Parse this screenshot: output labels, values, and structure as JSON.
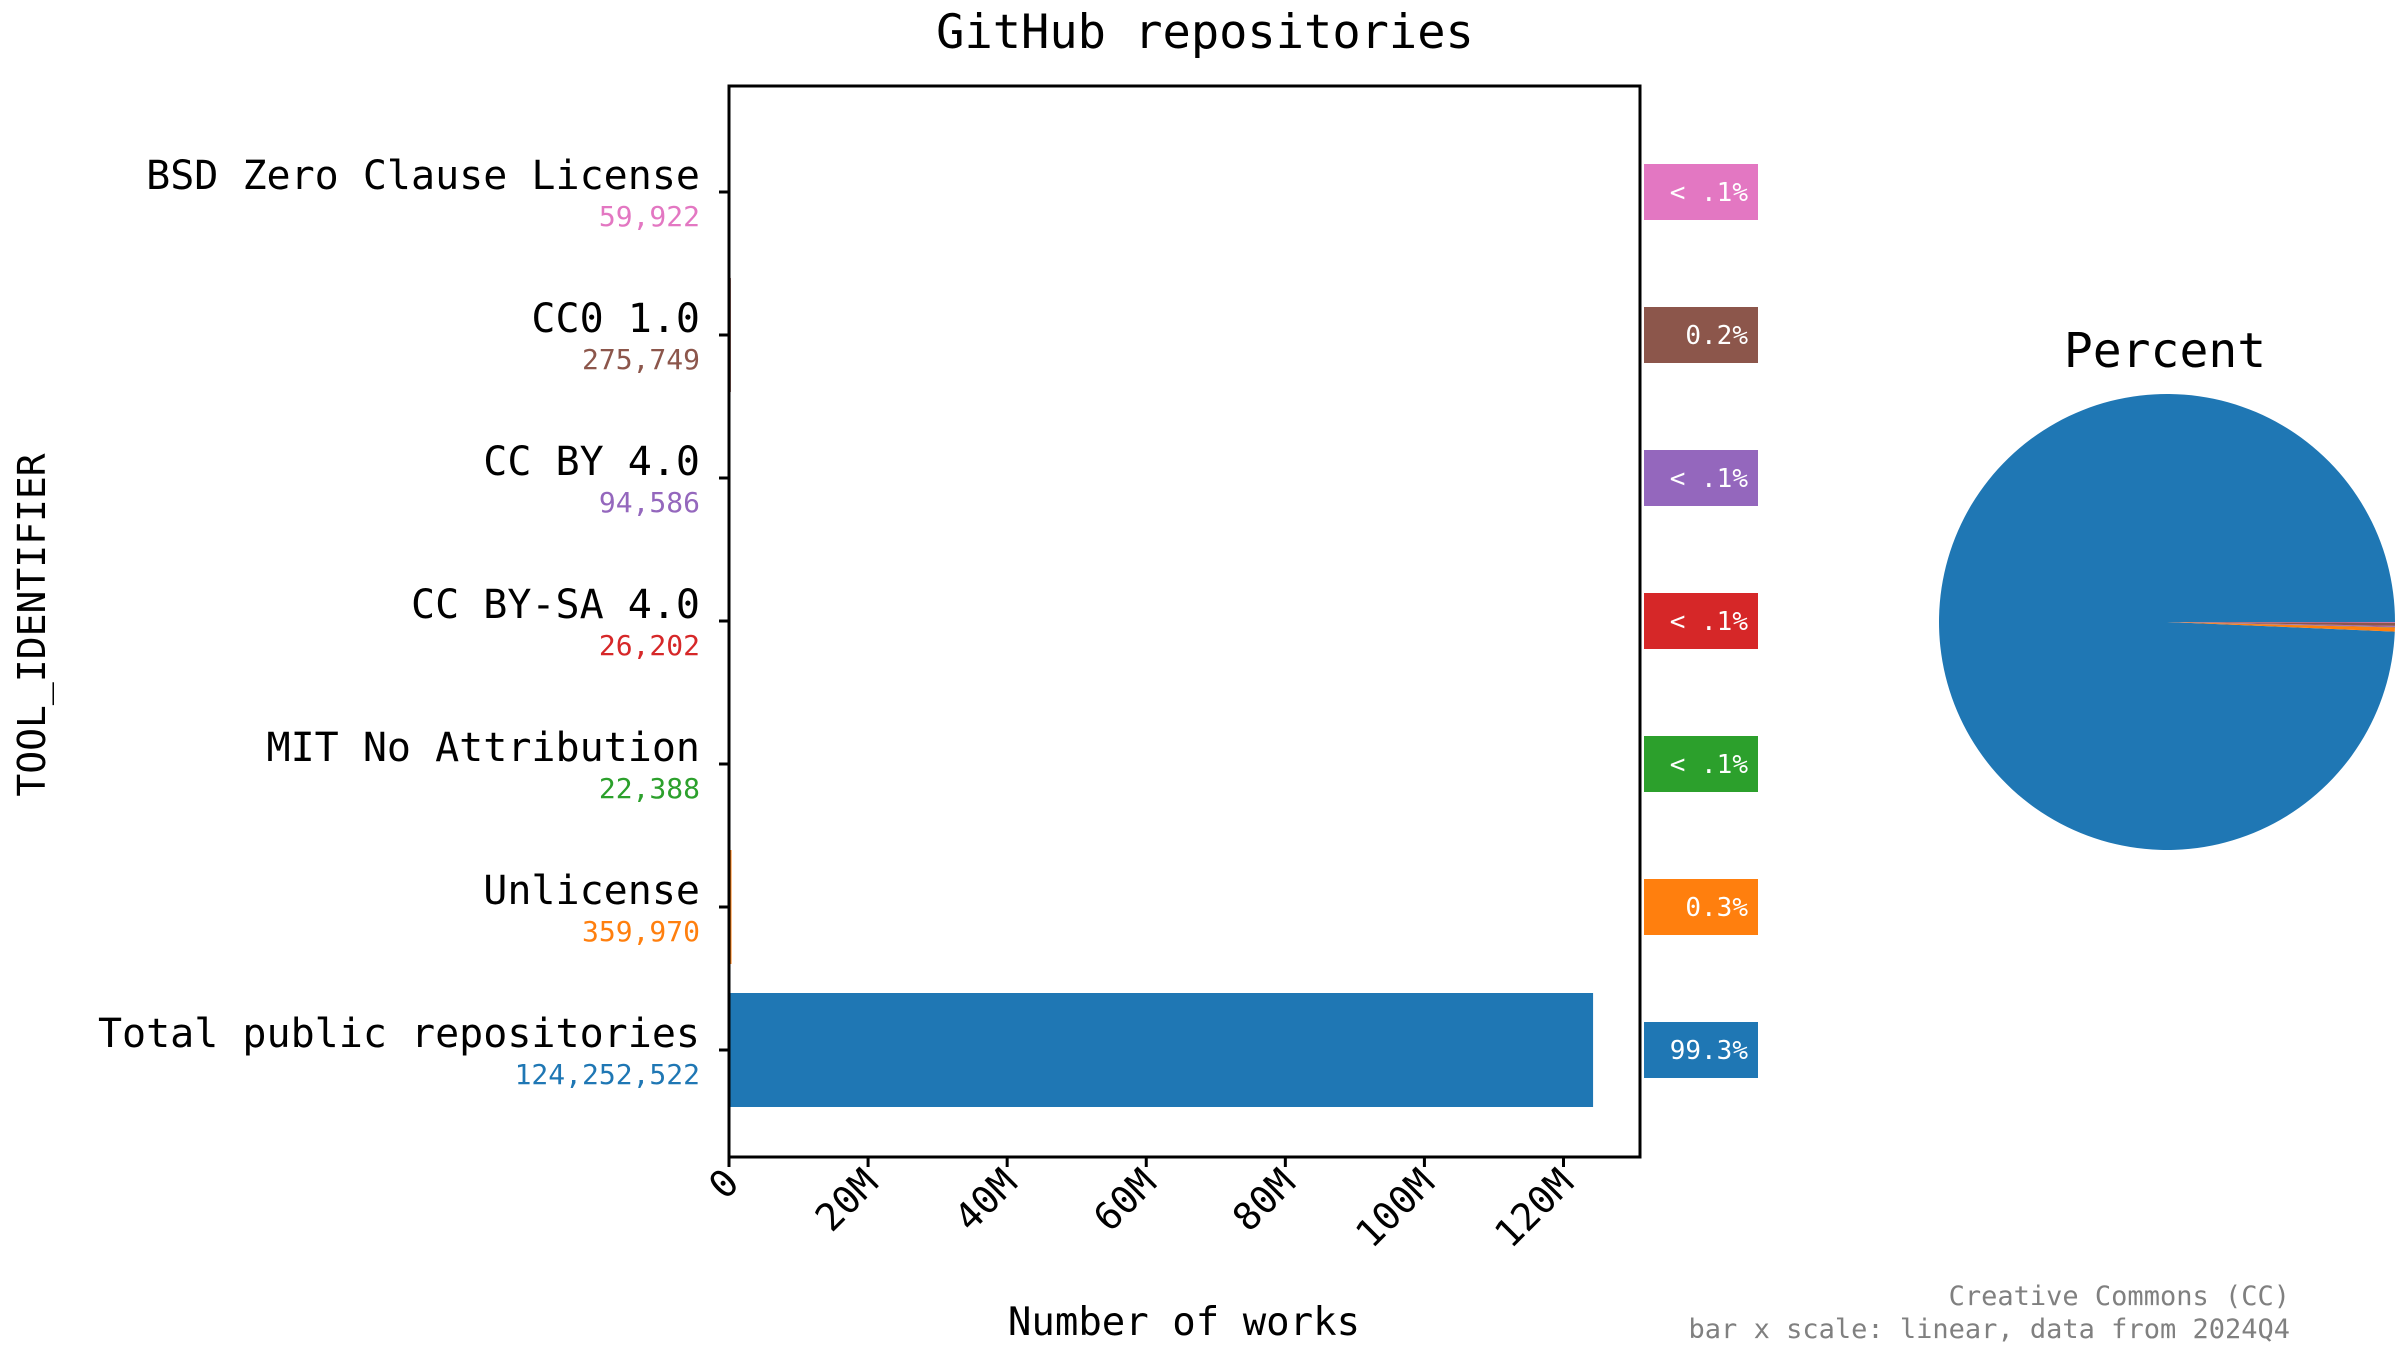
{
  "chart_data": {
    "type": "bar",
    "title": "GitHub repositories",
    "xlabel": "Number of works",
    "ylabel": "TOOL_IDENTIFIER",
    "xlim": [
      0,
      131000000
    ],
    "xticks": [
      0,
      20000000,
      40000000,
      60000000,
      80000000,
      100000000,
      120000000
    ],
    "xtick_labels": [
      "0",
      "20M",
      "40M",
      "60M",
      "80M",
      "100M",
      "120M"
    ],
    "grid": false,
    "categories": [
      {
        "label": "BSD Zero Clause License",
        "value": 59922,
        "value_label": "59,922",
        "percent_label": "< .1%",
        "color": "#e377c2"
      },
      {
        "label": "CC0 1.0",
        "value": 275749,
        "value_label": "275,749",
        "percent_label": "0.2%",
        "color": "#8c564b"
      },
      {
        "label": "CC BY 4.0",
        "value": 94586,
        "value_label": "94,586",
        "percent_label": "< .1%",
        "color": "#9467bd"
      },
      {
        "label": "CC BY-SA 4.0",
        "value": 26202,
        "value_label": "26,202",
        "percent_label": "< .1%",
        "color": "#d62728"
      },
      {
        "label": "MIT No Attribution",
        "value": 22388,
        "value_label": "22,388",
        "percent_label": "< .1%",
        "color": "#2ca02c"
      },
      {
        "label": "Unlicense",
        "value": 359970,
        "value_label": "359,970",
        "percent_label": "0.3%",
        "color": "#ff7f0e"
      },
      {
        "label": "Total public repositories",
        "value": 124252522,
        "value_label": "124,252,522",
        "percent_label": "99.3%",
        "color": "#1f77b4"
      }
    ],
    "pie": {
      "title": "Percent",
      "start_angle_deg": 0,
      "order": [
        "Total public repositories",
        "Unlicense",
        "MIT No Attribution",
        "CC BY-SA 4.0",
        "CC BY 4.0",
        "CC0 1.0",
        "BSD Zero Clause License"
      ]
    },
    "footer": [
      "Creative Commons (CC)",
      "bar x scale: linear, data from 2024Q4"
    ]
  }
}
